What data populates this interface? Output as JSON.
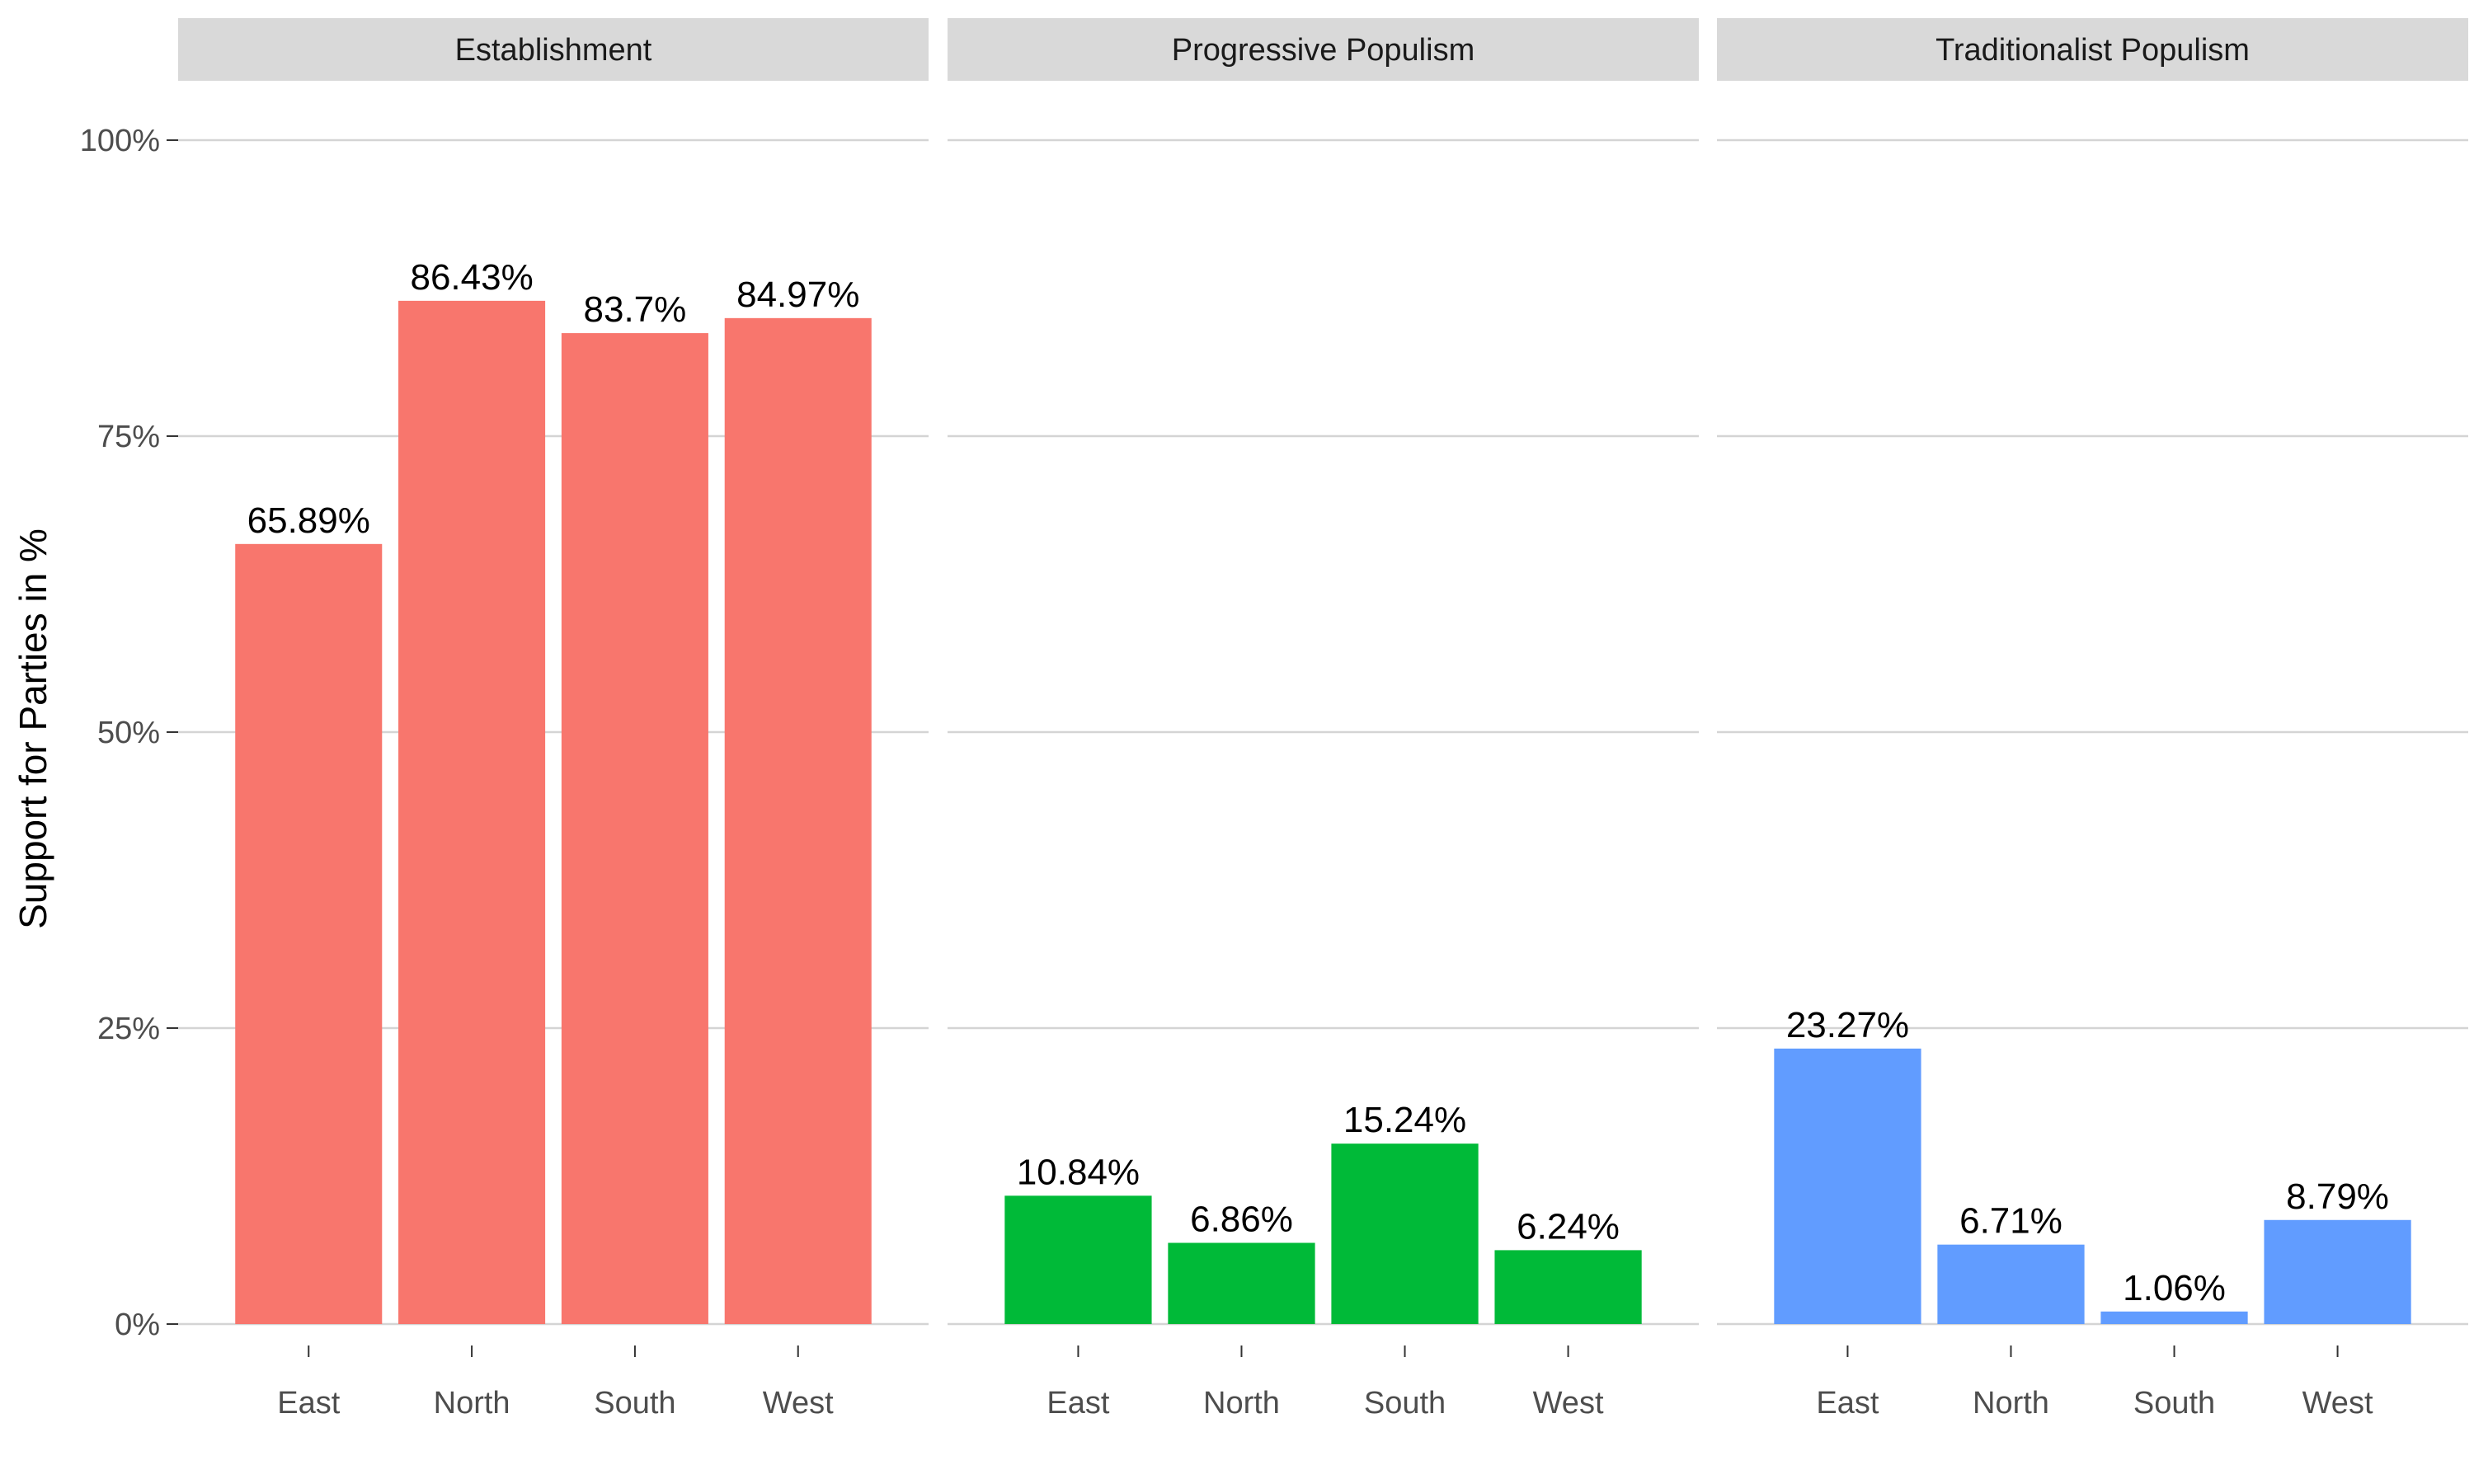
{
  "chart_data": {
    "type": "bar",
    "ylabel": "Support for Parties in %",
    "ylim": [
      0,
      100
    ],
    "yticks": [
      0,
      25,
      50,
      75,
      100
    ],
    "ytick_labels": [
      "0%",
      "25%",
      "50%",
      "75%",
      "100%"
    ],
    "grid": true,
    "legend": "none",
    "categories": [
      "East",
      "North",
      "South",
      "West"
    ],
    "facets": [
      {
        "title": "Establishment",
        "color": "#F8766D",
        "values": [
          65.89,
          86.43,
          83.7,
          84.97
        ],
        "labels": [
          "65.89%",
          "86.43%",
          "83.7%",
          "84.97%"
        ]
      },
      {
        "title": "Progressive Populism",
        "color": "#00BA38",
        "values": [
          10.84,
          6.86,
          15.24,
          6.24
        ],
        "labels": [
          "10.84%",
          "6.86%",
          "15.24%",
          "6.24%"
        ]
      },
      {
        "title": "Traditionalist Populism",
        "color": "#619CFF",
        "values": [
          23.27,
          6.71,
          1.06,
          8.79
        ],
        "labels": [
          "23.27%",
          "6.71%",
          "1.06%",
          "8.79%"
        ]
      }
    ]
  }
}
